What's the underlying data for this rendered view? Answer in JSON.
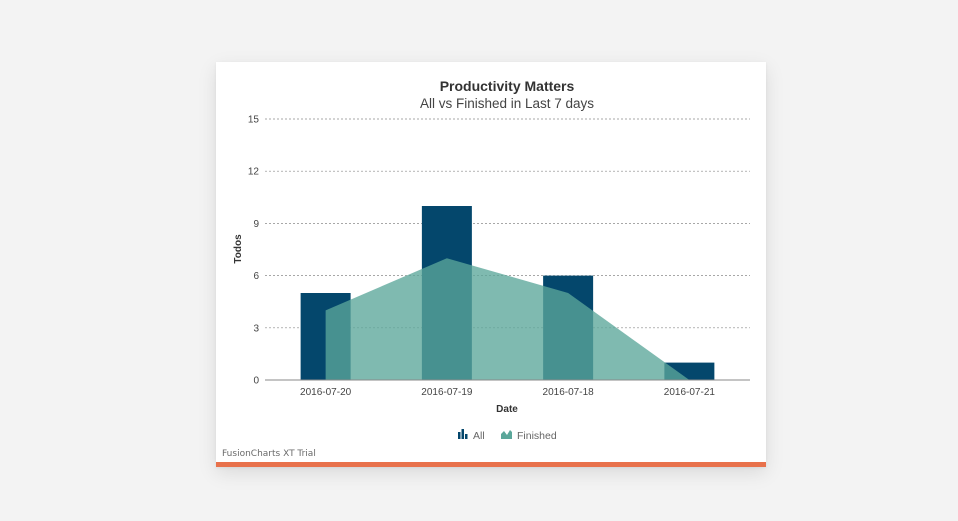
{
  "chart_data": {
    "type": "bar",
    "title": "Productivity Matters",
    "subtitle": "All vs Finished in Last 7 days",
    "xlabel": "Date",
    "ylabel": "Todos",
    "categories": [
      "2016-07-20",
      "2016-07-19",
      "2016-07-18",
      "2016-07-21"
    ],
    "series": [
      {
        "name": "All",
        "render": "bar",
        "values": [
          5,
          10,
          6,
          1
        ],
        "color": "#04476c"
      },
      {
        "name": "Finished",
        "render": "area",
        "values": [
          4,
          7,
          5,
          0
        ],
        "color": "#5ba79a"
      }
    ],
    "ylim": [
      0,
      15
    ],
    "yticks": [
      "0",
      "3",
      "6",
      "9",
      "12",
      "15"
    ],
    "grid": true,
    "legend_position": "bottom-center"
  },
  "footer": {
    "trial_text": "FusionCharts XT Trial",
    "accent_color": "#e8714b"
  },
  "legend_icons": {
    "All": "column-chart-icon",
    "Finished": "area-chart-icon"
  }
}
